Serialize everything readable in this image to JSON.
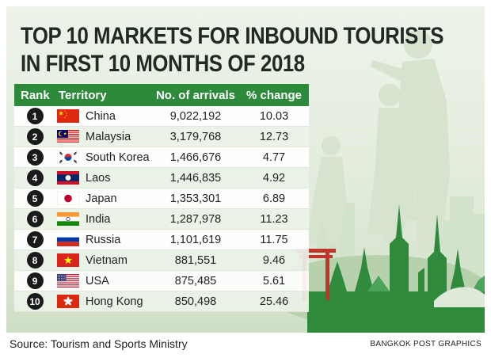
{
  "chart_data": {
    "type": "table",
    "title_lines": [
      "TOP 10 MARKETS FOR INBOUND TOURISTS",
      "IN FIRST 10 MONTHS OF 2018"
    ],
    "columns": [
      "Rank",
      "Territory",
      "No. of arrivals",
      "% change"
    ],
    "rows": [
      {
        "rank": "1",
        "territory": "China",
        "arrivals": "9,022,192",
        "change": "10.03",
        "flag": "china"
      },
      {
        "rank": "2",
        "territory": "Malaysia",
        "arrivals": "3,179,768",
        "change": "12.73",
        "flag": "malaysia"
      },
      {
        "rank": "3",
        "territory": "South Korea",
        "arrivals": "1,466,676",
        "change": "4.77",
        "flag": "south-korea"
      },
      {
        "rank": "4",
        "territory": "Laos",
        "arrivals": "1,446,835",
        "change": "4.92",
        "flag": "laos"
      },
      {
        "rank": "5",
        "territory": "Japan",
        "arrivals": "1,353,301",
        "change": "6.89",
        "flag": "japan"
      },
      {
        "rank": "6",
        "territory": "India",
        "arrivals": "1,287,978",
        "change": "11.23",
        "flag": "india"
      },
      {
        "rank": "7",
        "territory": "Russia",
        "arrivals": "1,101,619",
        "change": "11.75",
        "flag": "russia"
      },
      {
        "rank": "8",
        "territory": "Vietnam",
        "arrivals": "881,551",
        "change": "9.46",
        "flag": "vietnam"
      },
      {
        "rank": "9",
        "territory": "USA",
        "arrivals": "875,485",
        "change": "5.61",
        "flag": "usa"
      },
      {
        "rank": "10",
        "territory": "Hong Kong",
        "arrivals": "850,498",
        "change": "25.46",
        "flag": "hong-kong"
      }
    ]
  },
  "footer": {
    "source": "Source: Tourism and Sports Ministry",
    "credit": "BANGKOK POST GRAPHICS"
  },
  "colors": {
    "header_green": "#2d8a3b",
    "temple_green": "#2f8a3c",
    "background": "#e4ede0"
  }
}
